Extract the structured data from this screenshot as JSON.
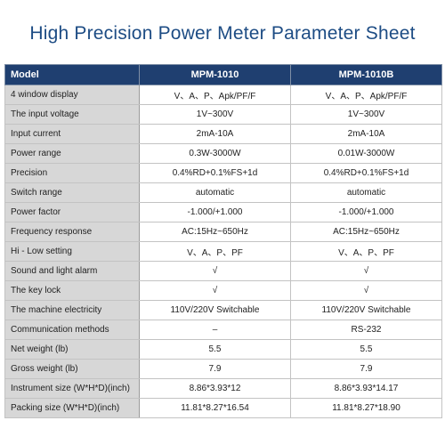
{
  "title": "High Precision Power Meter Parameter Sheet",
  "table": {
    "headers": [
      "Model",
      "MPM-1010",
      "MPM-1010B"
    ],
    "rows": [
      {
        "param": "4 window display",
        "m1": "V、A、P、Apk/PF/F",
        "m2": "V、A、P、Apk/PF/F"
      },
      {
        "param": "The input voltage",
        "m1": "1V~300V",
        "m2": "1V~300V"
      },
      {
        "param": "Input current",
        "m1": "2mA-10A",
        "m2": "2mA-10A"
      },
      {
        "param": "Power range",
        "m1": "0.3W-3000W",
        "m2": "0.01W-3000W"
      },
      {
        "param": "Precision",
        "m1": "0.4%RD+0.1%FS+1d",
        "m2": "0.4%RD+0.1%FS+1d"
      },
      {
        "param": "Switch range",
        "m1": "automatic",
        "m2": "automatic"
      },
      {
        "param": "Power factor",
        "m1": "-1.000/+1.000",
        "m2": "-1.000/+1.000"
      },
      {
        "param": "Frequency response",
        "m1": "AC:15Hz~650Hz",
        "m2": "AC:15Hz~650Hz"
      },
      {
        "param": "Hi - Low setting",
        "m1": "V、A、P、PF",
        "m2": "V、A、P、PF"
      },
      {
        "param": "Sound and light alarm",
        "m1": "√",
        "m2": "√"
      },
      {
        "param": "The key lock",
        "m1": "√",
        "m2": "√"
      },
      {
        "param": "The machine electricity",
        "m1": "110V/220V  Switchable",
        "m2": "110V/220V  Switchable"
      },
      {
        "param": "Communication methods",
        "m1": "–",
        "m2": "RS-232"
      },
      {
        "param": "Net weight (lb)",
        "m1": "5.5",
        "m2": "5.5"
      },
      {
        "param": "Gross weight (lb)",
        "m1": "7.9",
        "m2": "7.9"
      },
      {
        "param": "Instrument size (W*H*D)(inch)",
        "m1": "8.86*3.93*12",
        "m2": "8.86*3.93*14.17"
      },
      {
        "param": "Packing size  (W*H*D)(inch)",
        "m1": "11.81*8.27*16.54",
        "m2": "11.81*8.27*18.90"
      }
    ]
  },
  "colors": {
    "title": "#1d4c84",
    "header_bg": "#1f3f70",
    "param_bg": "#d7d7d7"
  }
}
